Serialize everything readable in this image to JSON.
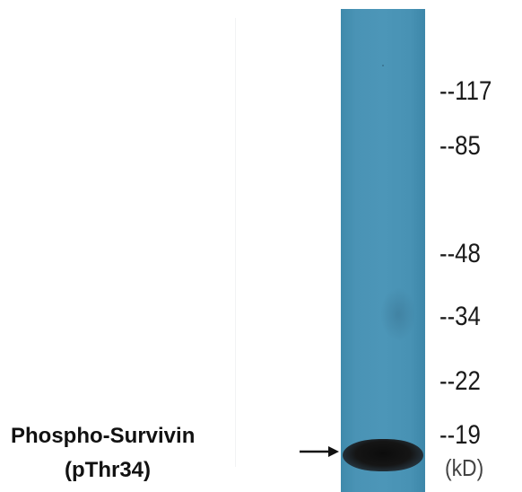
{
  "blot": {
    "protein_name": "Phospho-Survivin",
    "site": "(pThr34)",
    "unit": "(kD)",
    "markers": [
      "--117",
      "--85",
      "--48",
      "--34",
      "--22",
      "--19"
    ],
    "lane_color": "#4a93b5",
    "band_color": "#111111"
  }
}
